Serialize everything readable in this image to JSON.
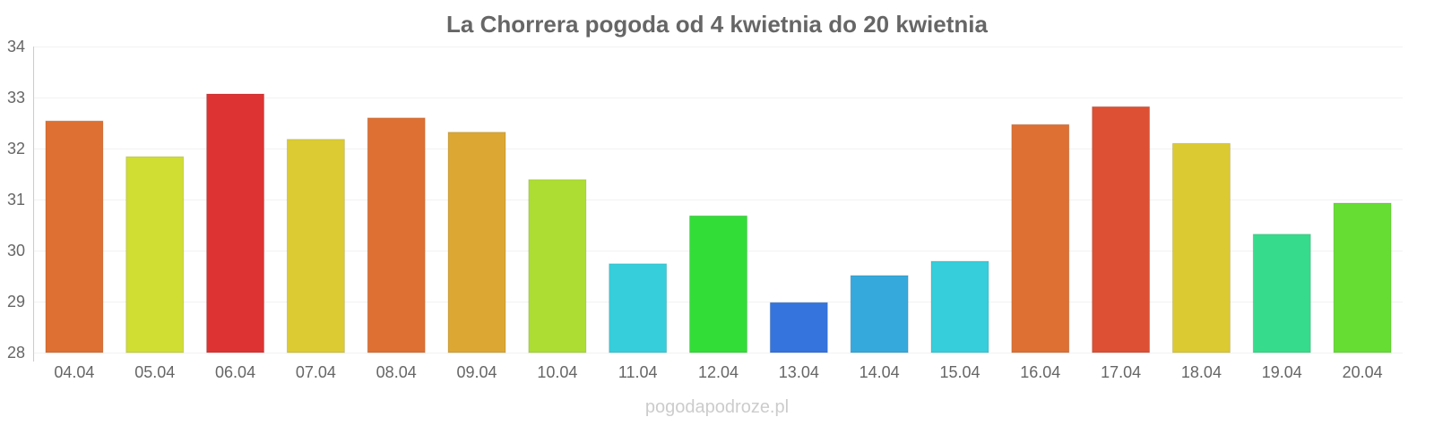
{
  "chart_data": {
    "type": "bar",
    "title": "La Chorrera pogoda od 4 kwietnia do 20 kwietnia",
    "xlabel": "",
    "ylabel": "",
    "ylim": [
      28,
      34
    ],
    "yticks": [
      28,
      29,
      30,
      31,
      32,
      33,
      34
    ],
    "grid": true,
    "categories": [
      "04.04",
      "05.04",
      "06.04",
      "07.04",
      "08.04",
      "09.04",
      "10.04",
      "11.04",
      "12.04",
      "13.04",
      "14.04",
      "15.04",
      "16.04",
      "17.04",
      "18.04",
      "19.04",
      "20.04"
    ],
    "values": [
      32.54,
      31.84,
      33.07,
      32.18,
      32.6,
      32.32,
      31.39,
      29.74,
      30.68,
      28.98,
      29.51,
      29.79,
      32.47,
      32.82,
      32.1,
      30.32,
      30.93
    ],
    "colors": [
      "#de7033",
      "#d0dd33",
      "#dd3333",
      "#dccb33",
      "#de7033",
      "#dca833",
      "#addd33",
      "#36cedb",
      "#33dd37",
      "#3574dd",
      "#36a9dc",
      "#36cedb",
      "#de7033",
      "#dd5033",
      "#dcca33",
      "#36dc8b",
      "#66dd33"
    ]
  },
  "watermark": "pogodapodroze.pl"
}
